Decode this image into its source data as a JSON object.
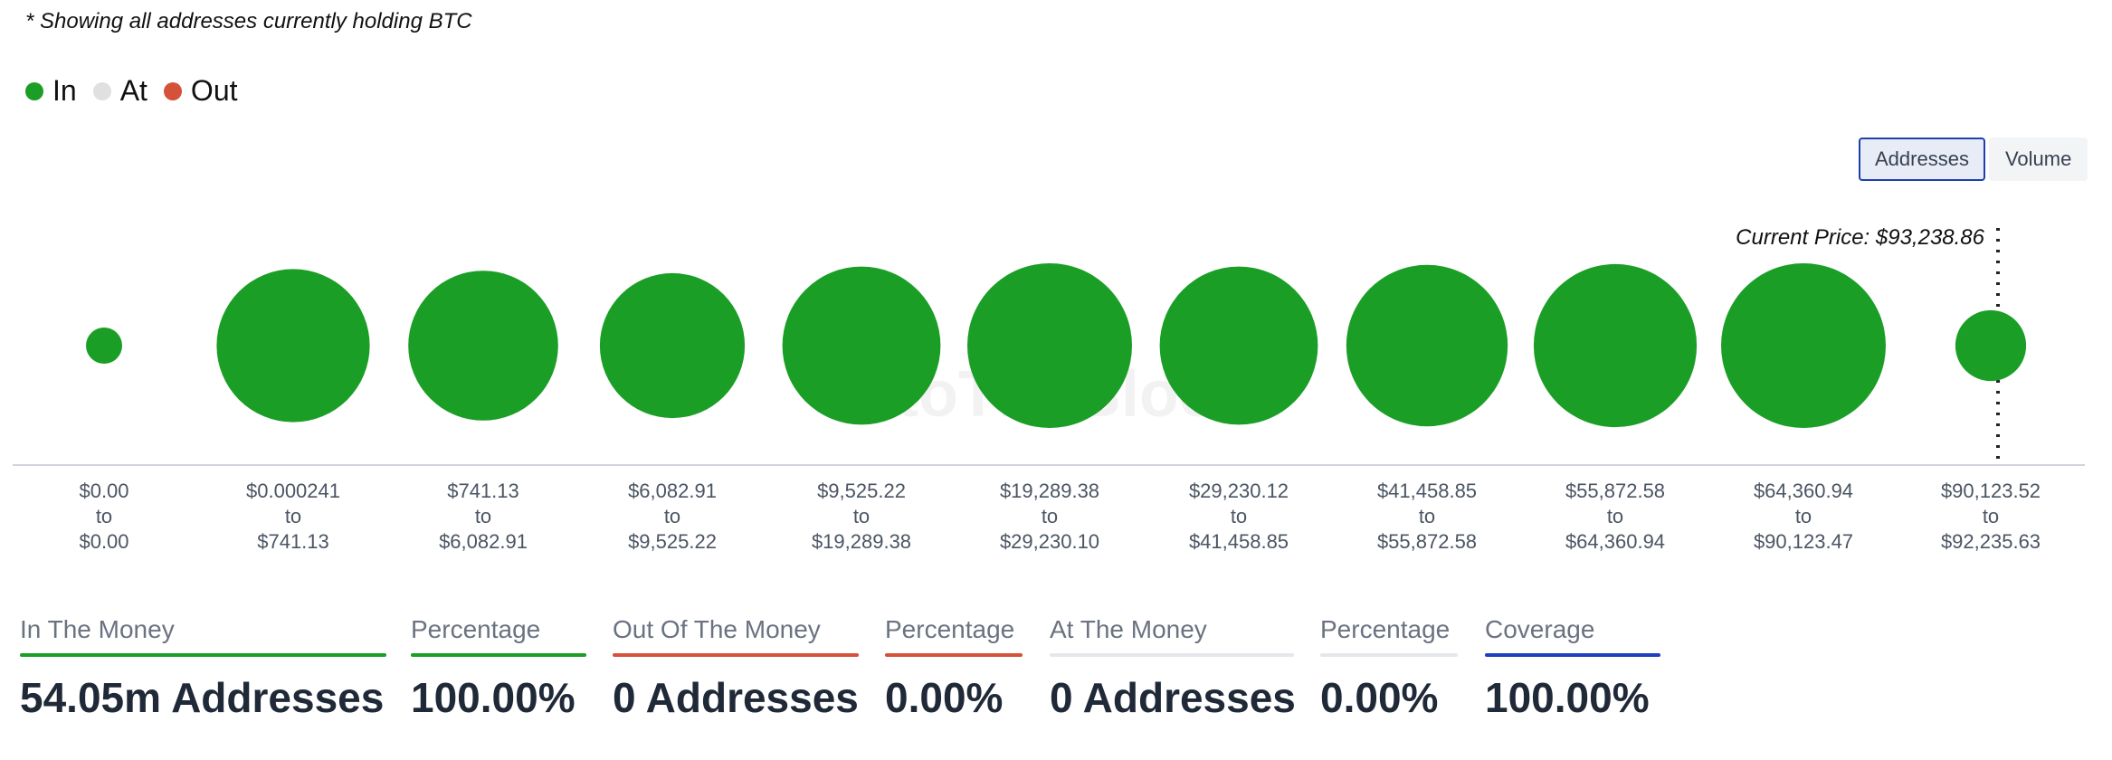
{
  "note": "* Showing all addresses currently holding BTC",
  "legend": [
    {
      "label": "In",
      "color": "#1a9e26"
    },
    {
      "label": "At",
      "color": "#e0e0e0"
    },
    {
      "label": "Out",
      "color": "#d5513a"
    }
  ],
  "toggle": {
    "addresses_label": "Addresses",
    "volume_label": "Volume",
    "active": "Addresses"
  },
  "watermark": "IntoTheBlock",
  "chart_data": {
    "type": "bubble",
    "current_price_label": "Current Price: $93,238.86",
    "bubble_color": "#1a9e26",
    "connector_word": "to",
    "ranges": [
      {
        "low": "$0.00",
        "high": "$0.00",
        "relative_size": 0.22
      },
      {
        "low": "$0.000241",
        "high": "$741.13",
        "relative_size": 0.93
      },
      {
        "low": "$741.13",
        "high": "$6,082.91",
        "relative_size": 0.91
      },
      {
        "low": "$6,082.91",
        "high": "$9,525.22",
        "relative_size": 0.88
      },
      {
        "low": "$9,525.22",
        "high": "$19,289.38",
        "relative_size": 0.96
      },
      {
        "low": "$19,289.38",
        "high": "$29,230.10",
        "relative_size": 1.0
      },
      {
        "low": "$29,230.12",
        "high": "$41,458.85",
        "relative_size": 0.96
      },
      {
        "low": "$41,458.85",
        "high": "$55,872.58",
        "relative_size": 0.98
      },
      {
        "low": "$55,872.58",
        "high": "$64,360.94",
        "relative_size": 0.99
      },
      {
        "low": "$64,360.94",
        "high": "$90,123.47",
        "relative_size": 1.0
      },
      {
        "low": "$90,123.52",
        "high": "$92,235.63",
        "relative_size": 0.43
      }
    ]
  },
  "stats": [
    {
      "label": "In The Money",
      "value": "54.05m Addresses",
      "bar_color": "#1a9e26"
    },
    {
      "label": "Percentage",
      "value": "100.00%",
      "bar_color": "#1a9e26"
    },
    {
      "label": "Out Of The Money",
      "value": "0 Addresses",
      "bar_color": "#d5513a"
    },
    {
      "label": "Percentage",
      "value": "0.00%",
      "bar_color": "#d5513a"
    },
    {
      "label": "At The Money",
      "value": "0 Addresses",
      "bar_color": "#e5e7eb"
    },
    {
      "label": "Percentage",
      "value": "0.00%",
      "bar_color": "#e5e7eb"
    },
    {
      "label": "Coverage",
      "value": "100.00%",
      "bar_color": "#1e3fbf"
    }
  ]
}
